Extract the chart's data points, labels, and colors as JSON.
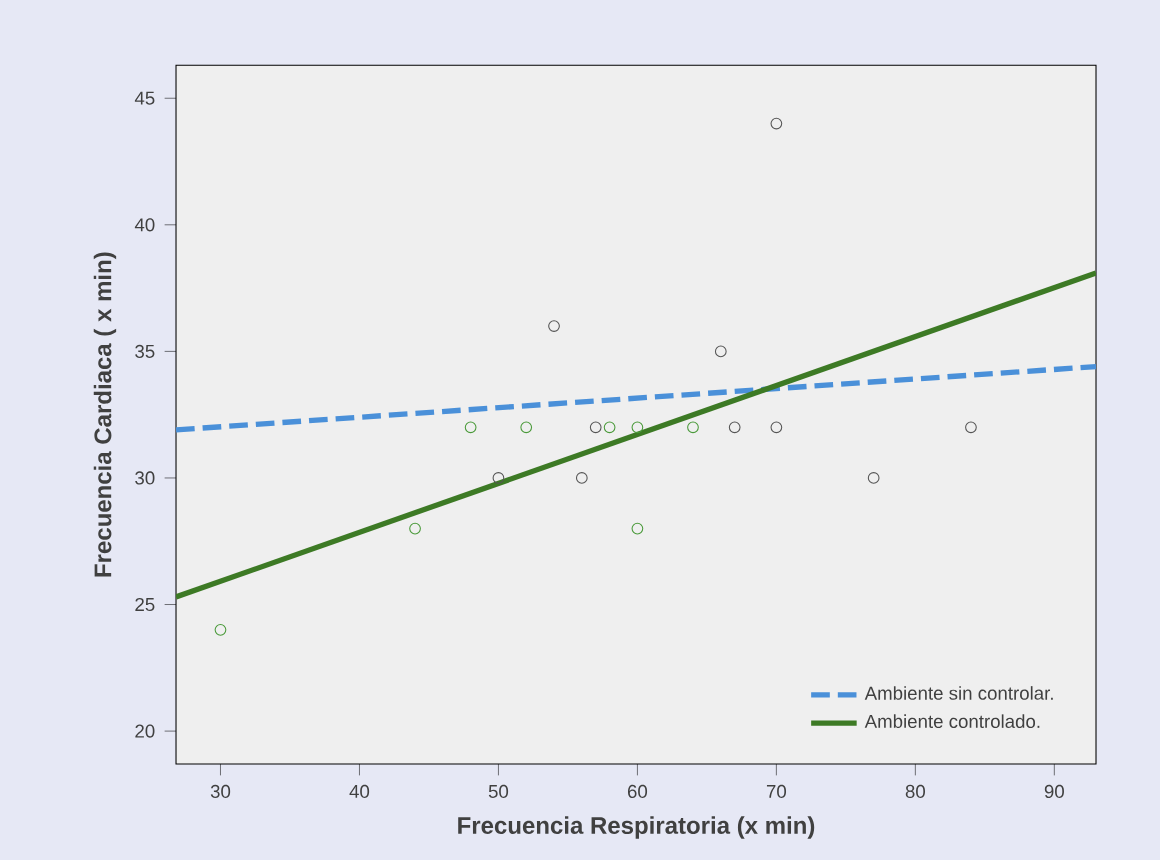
{
  "chart_data": {
    "type": "scatter",
    "xlabel": "Frecuencia Respiratoria (x min)",
    "ylabel": "Frecuencia  Cardiaca  ( x min)",
    "xlim": [
      26.8,
      93
    ],
    "ylim": [
      18.7,
      46.3
    ],
    "xticks": [
      30,
      40,
      50,
      60,
      70,
      80,
      90
    ],
    "yticks": [
      20,
      25,
      30,
      35,
      40,
      45
    ],
    "grid": false,
    "legend": "bottom right",
    "series": [
      {
        "marker": "circle",
        "color": "#555555",
        "x": [
          50,
          54,
          56,
          57,
          66,
          67,
          70,
          70,
          77,
          84
        ],
        "values": [
          30,
          36,
          30,
          32,
          35,
          32,
          44,
          32,
          30,
          32
        ]
      },
      {
        "marker": "circle",
        "color": "#4a9a3a",
        "x": [
          30,
          44,
          48,
          52,
          58,
          60,
          60,
          64
        ],
        "values": [
          24,
          28,
          32,
          32,
          32,
          32,
          28,
          32
        ]
      },
      {
        "type": "line",
        "name": "Ambiente sin controlar.",
        "line_style": "dashed",
        "color": "#4a90d9",
        "x": [
          26.8,
          93
        ],
        "values": [
          31.9,
          34.4
        ]
      },
      {
        "type": "line",
        "name": "Ambiente controlado.",
        "line_style": "solid",
        "color": "#3d7a25",
        "x": [
          26.8,
          93
        ],
        "values": [
          25.3,
          38.1
        ]
      }
    ]
  }
}
